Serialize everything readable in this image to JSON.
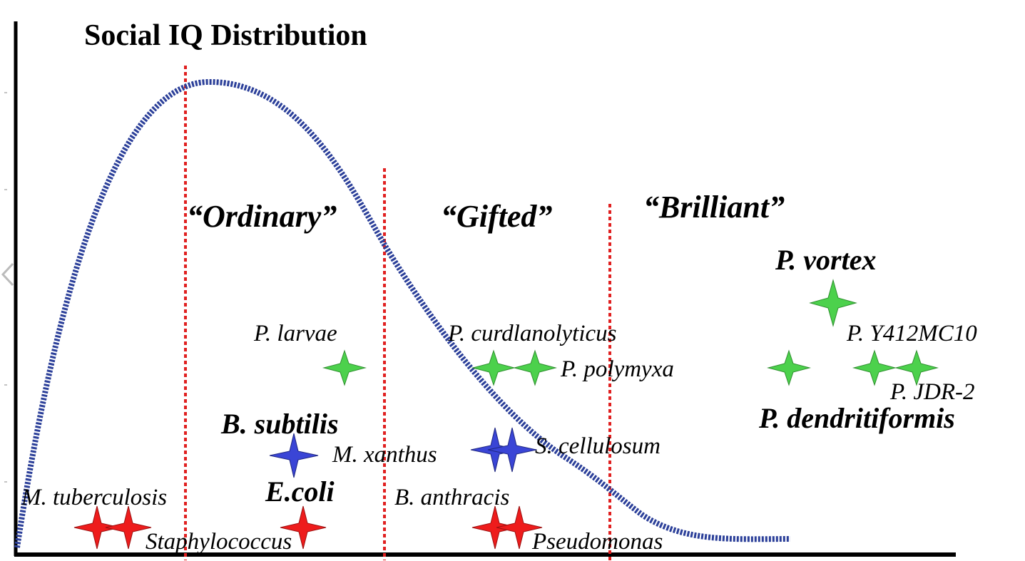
{
  "title": "Social IQ Distribution",
  "categories": [
    {
      "id": "ordinary",
      "label": "“Ordinary”"
    },
    {
      "id": "gifted",
      "label": "“Gifted”"
    },
    {
      "id": "brilliant",
      "label": "“Brilliant”"
    }
  ],
  "species_labels": {
    "p_vortex": "P. vortex",
    "p_y412mc10": "P. Y412MC10",
    "p_larvae": "P. larvae",
    "p_curdlanolyticus": "P. curdlanolyticus",
    "p_polymyxa": "P. polymyxa",
    "p_jdr2": "P. JDR-2",
    "p_dendritiformis": "P. dendritiformis",
    "b_subtilis": "B. subtilis",
    "m_xanthus": "M. xanthus",
    "s_cellulosum": "S. cellulosum",
    "m_tuberculosis": "M. tuberculosis",
    "e_coli": "E.coli",
    "b_anthracis": "B. anthracis",
    "staphylococcus": "Staphylococcus",
    "pseudomonas": "Pseudomonas"
  },
  "colors": {
    "curve": "#2b3f99",
    "divider": "#e02020",
    "axis": "#000000",
    "star_green": "#4cd14c",
    "star_blue": "#3a45d6",
    "star_red": "#ee1c1c"
  }
}
